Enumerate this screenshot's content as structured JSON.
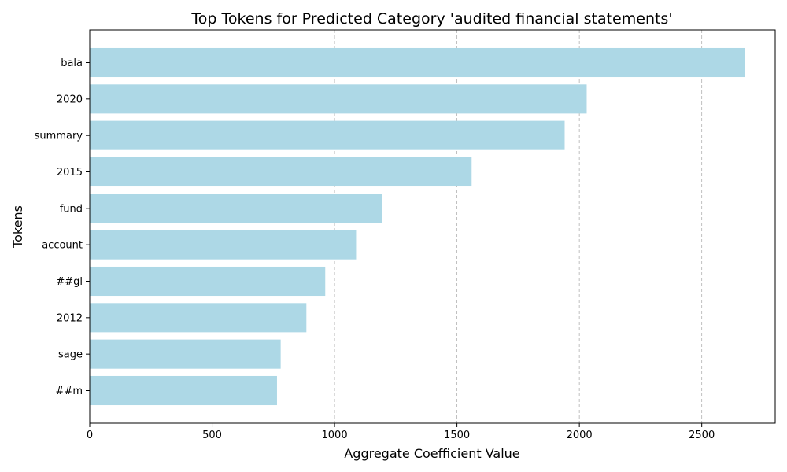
{
  "chart_data": {
    "type": "bar",
    "orientation": "horizontal",
    "title": "Top Tokens for Predicted Category 'audited financial statements'",
    "xlabel": "Aggregate Coefficient Value",
    "ylabel": "Tokens",
    "categories": [
      "bala",
      "2020",
      "summary",
      "2015",
      "fund",
      "account",
      "##gl",
      "2012",
      "sage",
      "##m"
    ],
    "values": [
      2675,
      2030,
      1940,
      1560,
      1195,
      1088,
      962,
      885,
      780,
      765
    ],
    "xlim": [
      0,
      2800
    ],
    "xticks": [
      0,
      500,
      1000,
      1500,
      2000,
      2500
    ],
    "xtick_labels": [
      "0",
      "500",
      "1000",
      "1500",
      "2000",
      "2500"
    ],
    "grid": "x dashed",
    "bar_color": "#add8e6"
  }
}
